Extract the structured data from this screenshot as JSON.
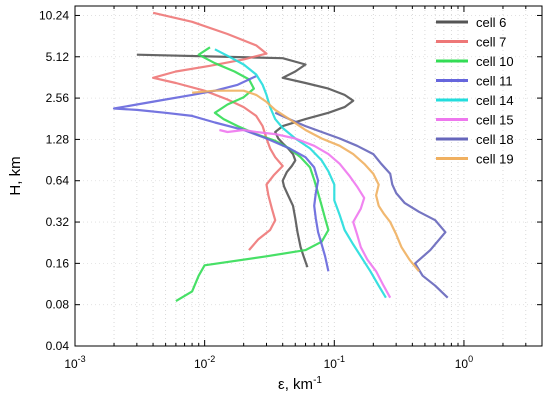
{
  "chart_data": {
    "type": "line",
    "xlabel": "ε, km",
    "xlabel_sup": "-1",
    "ylabel": "H, km",
    "xscale": "log",
    "yscale": "log2",
    "xlim": [
      0.001,
      4
    ],
    "ylim": [
      0.04,
      12
    ],
    "x_ticks": [
      {
        "value": 0.001,
        "base": "10",
        "exp": "-3"
      },
      {
        "value": 0.01,
        "base": "10",
        "exp": "-2"
      },
      {
        "value": 0.1,
        "base": "10",
        "exp": "-1"
      },
      {
        "value": 1,
        "base": "10",
        "exp": "0"
      }
    ],
    "y_ticks": [
      {
        "value": 0.04,
        "label": "0.04"
      },
      {
        "value": 0.08,
        "label": "0.08"
      },
      {
        "value": 0.16,
        "label": "0.16"
      },
      {
        "value": 0.32,
        "label": "0.32"
      },
      {
        "value": 0.64,
        "label": "0.64"
      },
      {
        "value": 1.28,
        "label": "1.28"
      },
      {
        "value": 2.56,
        "label": "2.56"
      },
      {
        "value": 5.12,
        "label": "5.12"
      },
      {
        "value": 10.24,
        "label": "10.24"
      }
    ],
    "grid": "minor dotted",
    "legend_position": "top-right",
    "series": [
      {
        "name": "cell 6",
        "color": "#555555",
        "points": [
          [
            0.062,
            0.15
          ],
          [
            0.058,
            0.18
          ],
          [
            0.055,
            0.21
          ],
          [
            0.052,
            0.27
          ],
          [
            0.05,
            0.34
          ],
          [
            0.048,
            0.42
          ],
          [
            0.044,
            0.5
          ],
          [
            0.041,
            0.58
          ],
          [
            0.04,
            0.64
          ],
          [
            0.043,
            0.74
          ],
          [
            0.047,
            0.82
          ],
          [
            0.05,
            0.9
          ],
          [
            0.048,
            1.0
          ],
          [
            0.044,
            1.1
          ],
          [
            0.04,
            1.2
          ],
          [
            0.037,
            1.3
          ],
          [
            0.035,
            1.45
          ],
          [
            0.04,
            1.6
          ],
          [
            0.06,
            1.8
          ],
          [
            0.09,
            2.0
          ],
          [
            0.12,
            2.2
          ],
          [
            0.14,
            2.45
          ],
          [
            0.12,
            2.7
          ],
          [
            0.09,
            3.0
          ],
          [
            0.06,
            3.3
          ],
          [
            0.04,
            3.6
          ],
          [
            0.05,
            4.0
          ],
          [
            0.06,
            4.5
          ],
          [
            0.04,
            5.0
          ],
          [
            0.003,
            5.3
          ]
        ]
      },
      {
        "name": "cell 7",
        "color": "#ee7777",
        "points": [
          [
            0.022,
            0.2
          ],
          [
            0.026,
            0.24
          ],
          [
            0.032,
            0.28
          ],
          [
            0.035,
            0.33
          ],
          [
            0.033,
            0.4
          ],
          [
            0.031,
            0.5
          ],
          [
            0.03,
            0.6
          ],
          [
            0.034,
            0.7
          ],
          [
            0.04,
            0.82
          ],
          [
            0.035,
            0.95
          ],
          [
            0.032,
            1.1
          ],
          [
            0.03,
            1.3
          ],
          [
            0.028,
            1.6
          ],
          [
            0.025,
            1.9
          ],
          [
            0.02,
            2.2
          ],
          [
            0.015,
            2.5
          ],
          [
            0.01,
            2.9
          ],
          [
            0.006,
            3.3
          ],
          [
            0.004,
            3.6
          ],
          [
            0.006,
            4.0
          ],
          [
            0.011,
            4.4
          ],
          [
            0.02,
            4.9
          ],
          [
            0.03,
            5.4
          ],
          [
            0.025,
            6.2
          ],
          [
            0.015,
            7.5
          ],
          [
            0.008,
            9.2
          ],
          [
            0.004,
            10.7
          ]
        ]
      },
      {
        "name": "cell 10",
        "color": "#33dd55",
        "points": [
          [
            0.006,
            0.085
          ],
          [
            0.008,
            0.1
          ],
          [
            0.009,
            0.13
          ],
          [
            0.01,
            0.155
          ],
          [
            0.03,
            0.18
          ],
          [
            0.06,
            0.2
          ],
          [
            0.08,
            0.23
          ],
          [
            0.09,
            0.28
          ],
          [
            0.085,
            0.34
          ],
          [
            0.08,
            0.42
          ],
          [
            0.075,
            0.52
          ],
          [
            0.07,
            0.65
          ],
          [
            0.065,
            0.8
          ],
          [
            0.055,
            0.95
          ],
          [
            0.045,
            1.1
          ],
          [
            0.035,
            1.25
          ],
          [
            0.025,
            1.4
          ],
          [
            0.018,
            1.6
          ],
          [
            0.014,
            1.8
          ],
          [
            0.012,
            2.0
          ],
          [
            0.015,
            2.3
          ],
          [
            0.02,
            2.6
          ],
          [
            0.024,
            3.0
          ],
          [
            0.022,
            3.5
          ],
          [
            0.017,
            4.0
          ],
          [
            0.012,
            4.6
          ],
          [
            0.009,
            5.3
          ],
          [
            0.011,
            6.0
          ]
        ]
      },
      {
        "name": "cell 11",
        "color": "#6666dd",
        "points": [
          [
            0.09,
            0.14
          ],
          [
            0.085,
            0.18
          ],
          [
            0.08,
            0.22
          ],
          [
            0.075,
            0.27
          ],
          [
            0.072,
            0.34
          ],
          [
            0.07,
            0.42
          ],
          [
            0.072,
            0.52
          ],
          [
            0.075,
            0.64
          ],
          [
            0.07,
            0.8
          ],
          [
            0.06,
            0.95
          ],
          [
            0.045,
            1.1
          ],
          [
            0.03,
            1.3
          ],
          [
            0.02,
            1.5
          ],
          [
            0.012,
            1.7
          ],
          [
            0.008,
            1.9
          ],
          [
            0.005,
            2.0
          ],
          [
            0.003,
            2.1
          ],
          [
            0.002,
            2.15
          ],
          [
            0.003,
            2.3
          ],
          [
            0.005,
            2.5
          ],
          [
            0.008,
            2.7
          ],
          [
            0.012,
            2.9
          ],
          [
            0.018,
            3.2
          ],
          [
            0.025,
            3.7
          ]
        ]
      },
      {
        "name": "cell 14",
        "color": "#22dddd",
        "points": [
          [
            0.25,
            0.09
          ],
          [
            0.22,
            0.11
          ],
          [
            0.19,
            0.14
          ],
          [
            0.16,
            0.18
          ],
          [
            0.14,
            0.22
          ],
          [
            0.12,
            0.28
          ],
          [
            0.11,
            0.36
          ],
          [
            0.1,
            0.46
          ],
          [
            0.1,
            0.6
          ],
          [
            0.09,
            0.75
          ],
          [
            0.08,
            0.9
          ],
          [
            0.065,
            1.1
          ],
          [
            0.05,
            1.3
          ],
          [
            0.04,
            1.55
          ],
          [
            0.035,
            1.8
          ],
          [
            0.032,
            2.2
          ],
          [
            0.03,
            2.7
          ],
          [
            0.028,
            3.2
          ],
          [
            0.025,
            3.8
          ],
          [
            0.02,
            4.5
          ],
          [
            0.015,
            5.2
          ],
          [
            0.012,
            5.8
          ]
        ]
      },
      {
        "name": "cell 15",
        "color": "#ee77ee",
        "points": [
          [
            0.27,
            0.09
          ],
          [
            0.24,
            0.11
          ],
          [
            0.21,
            0.14
          ],
          [
            0.18,
            0.17
          ],
          [
            0.16,
            0.21
          ],
          [
            0.15,
            0.26
          ],
          [
            0.14,
            0.32
          ],
          [
            0.16,
            0.4
          ],
          [
            0.17,
            0.48
          ],
          [
            0.15,
            0.58
          ],
          [
            0.13,
            0.7
          ],
          [
            0.11,
            0.85
          ],
          [
            0.09,
            1.0
          ],
          [
            0.07,
            1.15
          ],
          [
            0.05,
            1.3
          ],
          [
            0.035,
            1.4
          ],
          [
            0.025,
            1.45
          ],
          [
            0.02,
            1.5
          ],
          [
            0.015,
            1.45
          ],
          [
            0.013,
            1.5
          ]
        ]
      },
      {
        "name": "cell 18",
        "color": "#6666bb",
        "points": [
          [
            0.75,
            0.09
          ],
          [
            0.6,
            0.11
          ],
          [
            0.48,
            0.13
          ],
          [
            0.42,
            0.16
          ],
          [
            0.55,
            0.2
          ],
          [
            0.72,
            0.27
          ],
          [
            0.6,
            0.33
          ],
          [
            0.45,
            0.38
          ],
          [
            0.35,
            0.44
          ],
          [
            0.3,
            0.52
          ],
          [
            0.28,
            0.6
          ],
          [
            0.27,
            0.72
          ],
          [
            0.23,
            0.85
          ],
          [
            0.2,
            1.0
          ],
          [
            0.15,
            1.15
          ],
          [
            0.11,
            1.3
          ],
          [
            0.08,
            1.45
          ],
          [
            0.06,
            1.6
          ],
          [
            0.045,
            1.8
          ],
          [
            0.035,
            2.0
          ]
        ]
      },
      {
        "name": "cell 19",
        "color": "#f0b060",
        "points": [
          [
            0.45,
            0.14
          ],
          [
            0.38,
            0.17
          ],
          [
            0.33,
            0.21
          ],
          [
            0.3,
            0.26
          ],
          [
            0.27,
            0.32
          ],
          [
            0.24,
            0.37
          ],
          [
            0.22,
            0.42
          ],
          [
            0.21,
            0.5
          ],
          [
            0.22,
            0.6
          ],
          [
            0.2,
            0.72
          ],
          [
            0.17,
            0.85
          ],
          [
            0.14,
            1.0
          ],
          [
            0.11,
            1.15
          ],
          [
            0.08,
            1.3
          ],
          [
            0.06,
            1.5
          ],
          [
            0.045,
            1.8
          ],
          [
            0.035,
            2.1
          ],
          [
            0.03,
            2.4
          ],
          [
            0.025,
            2.7
          ],
          [
            0.02,
            2.9
          ],
          [
            0.012,
            2.9
          ],
          [
            0.008,
            2.8
          ]
        ]
      }
    ]
  }
}
